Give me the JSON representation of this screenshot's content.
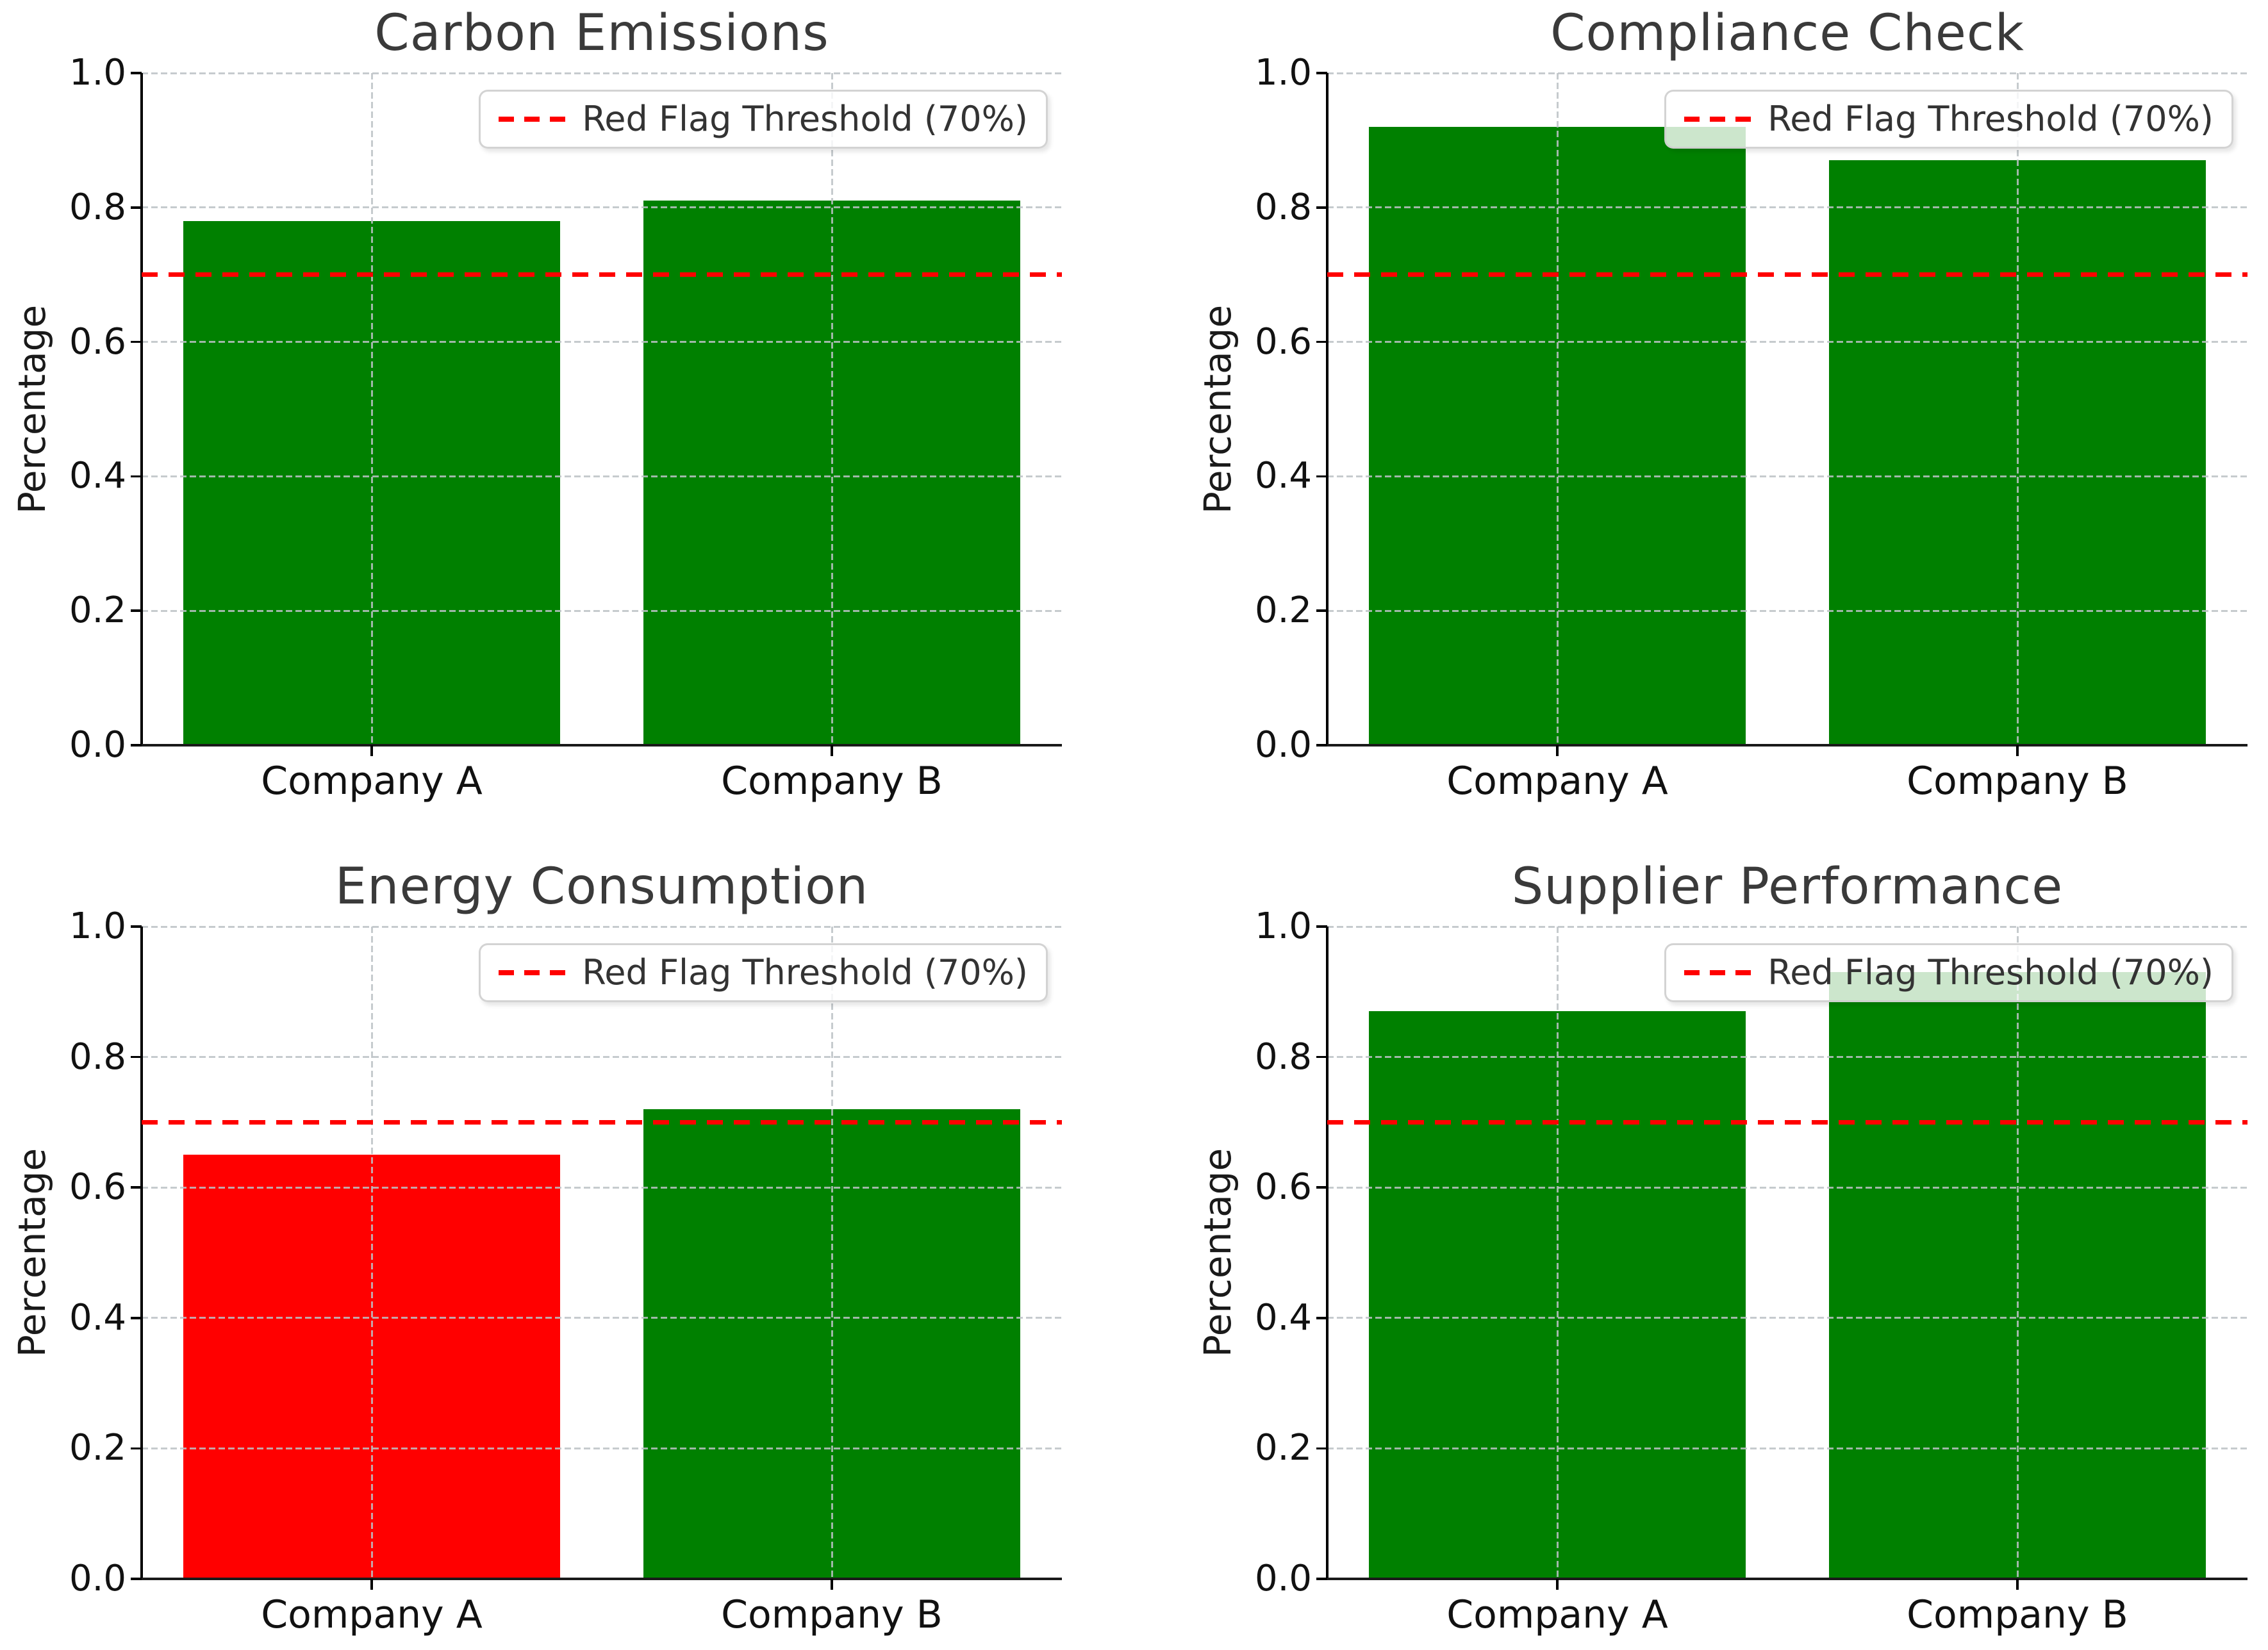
{
  "figure": {
    "background": "#ffffff",
    "ylabel": "Percentage",
    "yticks": [
      "0.0",
      "0.2",
      "0.4",
      "0.6",
      "0.8",
      "1.0"
    ],
    "categories": [
      "Company A",
      "Company B"
    ],
    "colors": {
      "pass_bar": "#008000",
      "fail_bar": "#ff0000",
      "threshold": "#ff0000",
      "grid": "#c4c8cb",
      "title_text": "#3a3a3a",
      "tick_text": "#111111"
    }
  },
  "chart_data": [
    {
      "type": "bar",
      "title": "Carbon Emissions",
      "categories": [
        "Company A",
        "Company B"
      ],
      "values": [
        0.78,
        0.81
      ],
      "bar_colors": [
        "#008000",
        "#008000"
      ],
      "ylabel": "Percentage",
      "ylim": [
        0.0,
        1.0
      ],
      "grid": true,
      "legend_position": "upper right",
      "threshold": {
        "value": 0.7,
        "label": "Red Flag Threshold (70%)",
        "color": "#ff0000",
        "style": "dashed"
      }
    },
    {
      "type": "bar",
      "title": "Compliance Check",
      "categories": [
        "Company A",
        "Company B"
      ],
      "values": [
        0.92,
        0.87
      ],
      "bar_colors": [
        "#008000",
        "#008000"
      ],
      "ylabel": "Percentage",
      "ylim": [
        0.0,
        1.0
      ],
      "grid": true,
      "legend_position": "upper right",
      "threshold": {
        "value": 0.7,
        "label": "Red Flag Threshold (70%)",
        "color": "#ff0000",
        "style": "dashed"
      }
    },
    {
      "type": "bar",
      "title": "Energy Consumption",
      "categories": [
        "Company A",
        "Company B"
      ],
      "values": [
        0.65,
        0.72
      ],
      "bar_colors": [
        "#ff0000",
        "#008000"
      ],
      "ylabel": "Percentage",
      "ylim": [
        0.0,
        1.0
      ],
      "grid": true,
      "legend_position": "upper right",
      "threshold": {
        "value": 0.7,
        "label": "Red Flag Threshold (70%)",
        "color": "#ff0000",
        "style": "dashed"
      }
    },
    {
      "type": "bar",
      "title": "Supplier Performance",
      "categories": [
        "Company A",
        "Company B"
      ],
      "values": [
        0.87,
        0.93
      ],
      "bar_colors": [
        "#008000",
        "#008000"
      ],
      "ylabel": "Percentage",
      "ylim": [
        0.0,
        1.0
      ],
      "grid": true,
      "legend_position": "upper right",
      "threshold": {
        "value": 0.7,
        "label": "Red Flag Threshold (70%)",
        "color": "#ff0000",
        "style": "dashed"
      }
    }
  ]
}
